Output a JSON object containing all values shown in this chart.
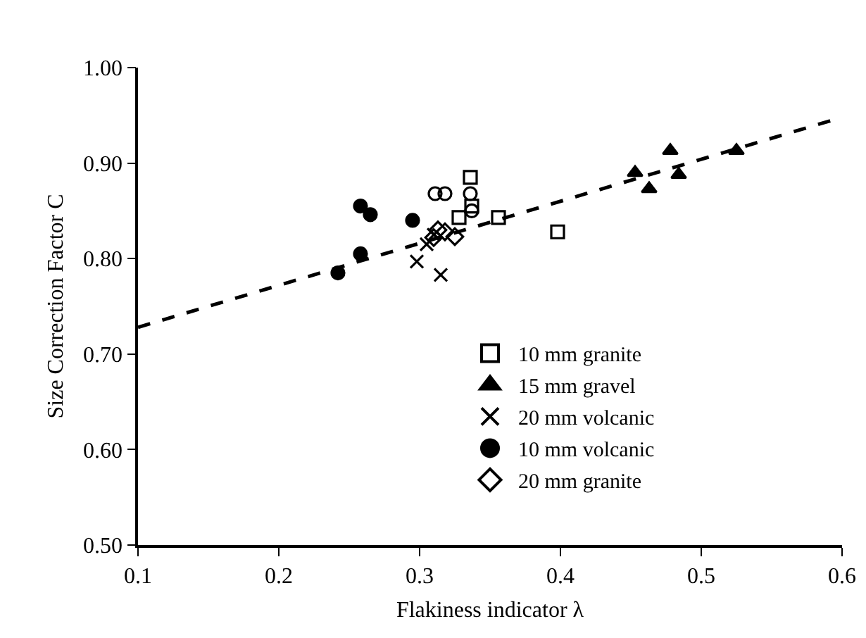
{
  "chart_data": {
    "type": "scatter",
    "xlabel": "Flakiness indicator λ",
    "ylabel": "Size Correction Factor C",
    "xlim": [
      0.1,
      0.6
    ],
    "xticks": [
      0.1,
      0.2,
      0.3,
      0.4,
      0.5,
      0.6
    ],
    "ylim": [
      0.5,
      1.0
    ],
    "yticks": [
      {
        "value": 0.5,
        "label": "0.50"
      },
      {
        "value": 0.6,
        "label": "0.60"
      },
      {
        "value": 0.7,
        "label": "0.70"
      },
      {
        "value": 0.8,
        "label": "0.80"
      },
      {
        "value": 0.9,
        "label": "0.90"
      },
      {
        "value": 1.0,
        "label": "1.00"
      }
    ],
    "grid": false,
    "legend": "bottom right",
    "series": [
      {
        "name": "10 mm granite",
        "color": "#000000",
        "marker": "square-open",
        "x": [
          0.336,
          0.337,
          0.328,
          0.356,
          0.398
        ],
        "values": [
          0.885,
          0.855,
          0.843,
          0.843,
          0.828
        ]
      },
      {
        "name": "15 mm gravel",
        "color": "#000000",
        "marker": "triangle",
        "x": [
          0.453,
          0.463,
          0.478,
          0.484,
          0.525
        ],
        "values": [
          0.89,
          0.873,
          0.913,
          0.888,
          0.913
        ]
      },
      {
        "name": "20 mm volcanic",
        "color": "#000000",
        "marker": "cross",
        "x": [
          0.298,
          0.315,
          0.305,
          0.31
        ],
        "values": [
          0.797,
          0.783,
          0.815,
          0.825
        ]
      },
      {
        "name": "10 mm volcanic",
        "color": "#000000",
        "marker": "circle",
        "x": [
          0.242,
          0.258,
          0.258,
          0.265,
          0.295
        ],
        "values": [
          0.785,
          0.805,
          0.855,
          0.846,
          0.84
        ]
      },
      {
        "name": "20 mm granite",
        "color": "#000000",
        "marker": "diamond-open",
        "x": [
          0.31,
          0.318,
          0.325,
          0.313
        ],
        "values": [
          0.822,
          0.828,
          0.823,
          0.83
        ]
      },
      {
        "color": "#000000",
        "marker": "circle-open",
        "x": [
          0.311,
          0.318,
          0.336,
          0.337
        ],
        "values": [
          0.868,
          0.868,
          0.868,
          0.85
        ]
      },
      {
        "type": "line",
        "color": "#000000",
        "line_style": "dashed",
        "marker": "none",
        "x": [
          0.1,
          0.6
        ],
        "values": [
          0.728,
          0.948
        ]
      }
    ]
  }
}
